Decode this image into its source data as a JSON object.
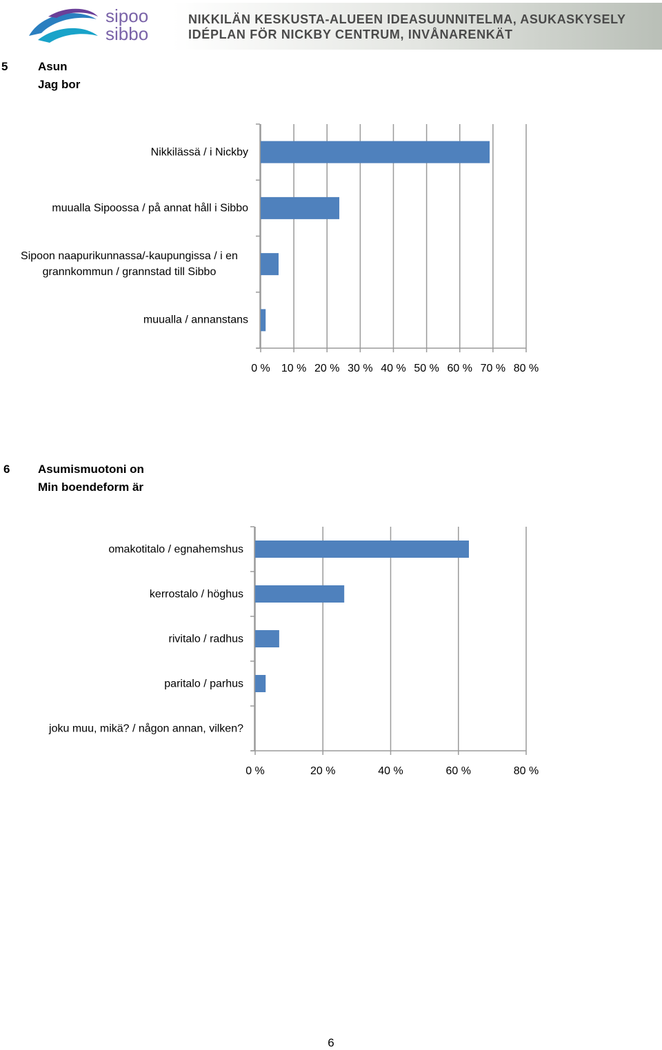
{
  "header": {
    "logo_line1": "sipoo",
    "logo_line2": "sibbo",
    "title_line1": "NIKKILÄN KESKUSTA-ALUEEN IDEASUUNNITELMA, ASUKASKYSELY",
    "title_line2": "IDÉPLAN FÖR NICKBY CENTRUM, INVÅNARENKÄT"
  },
  "sections": [
    {
      "number": "5",
      "title_line1": "Asun",
      "title_line2": "Jag bor"
    },
    {
      "number": "6",
      "title_line1": "Asumismuotoni on",
      "title_line2": "Min boendeform är"
    }
  ],
  "chart_data": [
    {
      "type": "bar",
      "orientation": "horizontal",
      "color": "#4f81bd",
      "grid": true,
      "categories": [
        "Nikkilässä / i Nickby",
        "muualla Sipoossa / på annat håll i Sibbo",
        "Sipoon naapurikunnassa/-kaupungissa / i en grannkommun / grannstad till Sibbo",
        "muualla / annanstans"
      ],
      "values": [
        69.0,
        23.7,
        5.4,
        1.5
      ],
      "xlim": [
        0,
        80
      ],
      "xticks": [
        {
          "value": 0,
          "label": "0 %"
        },
        {
          "value": 10,
          "label": "10 %"
        },
        {
          "value": 20,
          "label": "20 %"
        },
        {
          "value": 30,
          "label": "30 %"
        },
        {
          "value": 40,
          "label": "40 %"
        },
        {
          "value": 50,
          "label": "50 %"
        },
        {
          "value": 60,
          "label": "60 %"
        },
        {
          "value": 70,
          "label": "70 %"
        },
        {
          "value": 80,
          "label": "80 %"
        }
      ]
    },
    {
      "type": "bar",
      "orientation": "horizontal",
      "color": "#4f81bd",
      "grid": true,
      "categories": [
        "omakotitalo / egnahemshus",
        "kerrostalo / höghus",
        "rivitalo / radhus",
        "paritalo / parhus",
        "joku muu, mikä? / någon annan, vilken?"
      ],
      "values": [
        63.1,
        26.3,
        7.1,
        3.1,
        0
      ],
      "xlim": [
        0,
        80
      ],
      "xticks": [
        {
          "value": 0,
          "label": "0 %"
        },
        {
          "value": 20,
          "label": "20 %"
        },
        {
          "value": 40,
          "label": "40 %"
        },
        {
          "value": 60,
          "label": "60 %"
        },
        {
          "value": 80,
          "label": "80 %"
        }
      ]
    }
  ],
  "page_number": "6"
}
